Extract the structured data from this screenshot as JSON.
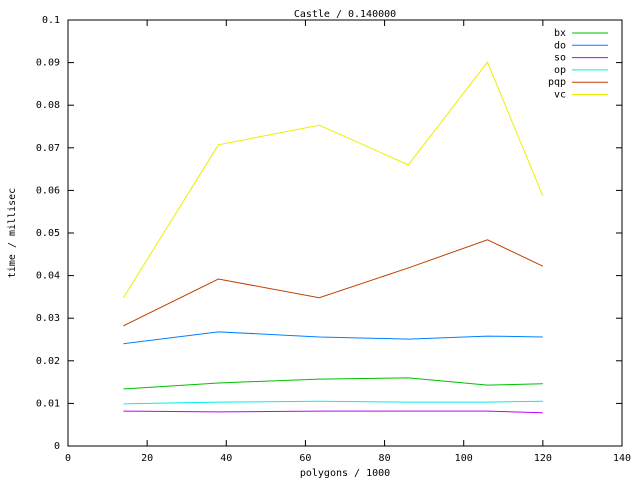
{
  "chart_data": {
    "type": "line",
    "title": "Castle / 0.140000",
    "x_label": "polygons / 1000",
    "y_label": "time / millisec",
    "x": [
      14,
      38,
      63.5,
      86,
      106,
      120
    ],
    "series": [
      {
        "name": "bx",
        "color": "#00c000",
        "values": [
          0.0134,
          0.0148,
          0.0157,
          0.016,
          0.0143,
          0.0146
        ]
      },
      {
        "name": "do",
        "color": "#0080ff",
        "values": [
          0.024,
          0.0268,
          0.0256,
          0.0251,
          0.0258,
          0.0256
        ]
      },
      {
        "name": "so",
        "color": "#c000ff",
        "values": [
          0.0082,
          0.008,
          0.0082,
          0.0082,
          0.0082,
          0.0078
        ]
      },
      {
        "name": "op",
        "color": "#00eeee",
        "values": [
          0.0099,
          0.0103,
          0.0105,
          0.0103,
          0.0103,
          0.0105
        ]
      },
      {
        "name": "pqp",
        "color": "#c04000",
        "values": [
          0.0282,
          0.0392,
          0.0348,
          0.0418,
          0.0484,
          0.0422
        ]
      },
      {
        "name": "vc",
        "color": "#eeee00",
        "values": [
          0.0348,
          0.0707,
          0.0753,
          0.066,
          0.0901,
          0.0587
        ]
      }
    ],
    "xlim": [
      0,
      140
    ],
    "xticks": [
      0,
      20,
      40,
      60,
      80,
      100,
      120,
      140
    ],
    "ylim": [
      0,
      0.1
    ],
    "yticks": [
      0,
      0.01,
      0.02,
      0.03,
      0.04,
      0.05,
      0.06,
      0.07,
      0.08,
      0.09,
      0.1
    ],
    "grid": false,
    "legend": "top-right"
  }
}
